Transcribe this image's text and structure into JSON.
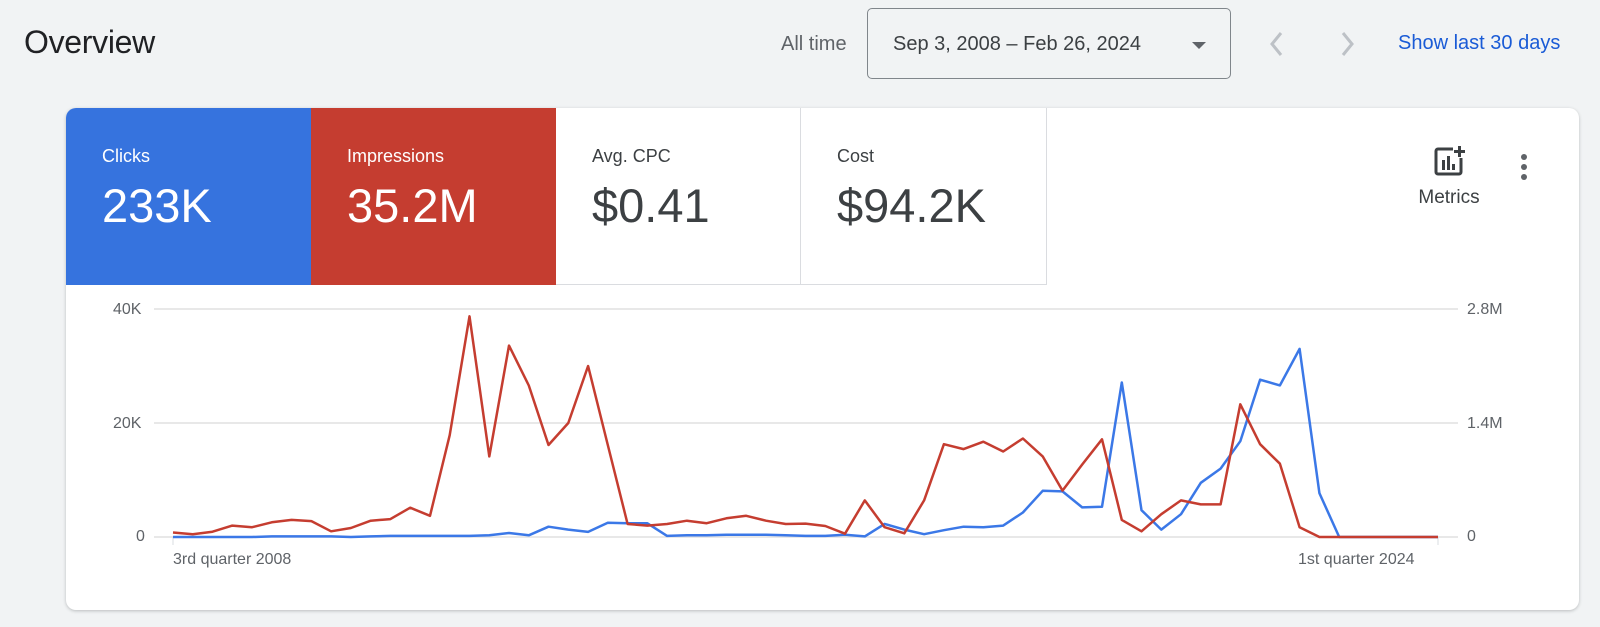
{
  "header": {
    "title": "Overview",
    "range_label": "All time",
    "date_range": "Sep 3, 2008 – Feb 26, 2024",
    "prev_icon": "chevron-left-icon",
    "next_icon": "chevron-right-icon",
    "show_last_30": "Show last 30 days"
  },
  "tiles": [
    {
      "label": "Clicks",
      "value": "233K",
      "color": "#3673de"
    },
    {
      "label": "Impressions",
      "value": "35.2M",
      "color": "#c53d30"
    },
    {
      "label": "Avg. CPC",
      "value": "$0.41"
    },
    {
      "label": "Cost",
      "value": "$94.2K"
    }
  ],
  "toolbar": {
    "metrics_label": "Metrics",
    "metrics_icon": "add-chart-icon",
    "more_icon": "more-vert-icon"
  },
  "chart_data": {
    "type": "line",
    "title": "",
    "x_start_label": "3rd quarter 2008",
    "x_end_label": "1st quarter 2024",
    "left_axis": {
      "ticks": [
        "0",
        "20K",
        "40K"
      ],
      "range": [
        0,
        40000
      ]
    },
    "right_axis": {
      "ticks": [
        "0",
        "1.4M",
        "2.8M"
      ],
      "range": [
        0,
        2800000
      ]
    },
    "grid": true,
    "series": [
      {
        "name": "Clicks",
        "axis": "left",
        "color": "#3b78e7",
        "values": [
          0,
          0,
          0,
          0,
          0,
          100,
          100,
          100,
          100,
          0,
          100,
          200,
          200,
          200,
          200,
          200,
          300,
          700,
          300,
          1800,
          1300,
          900,
          2500,
          2400,
          2400,
          200,
          300,
          300,
          400,
          400,
          400,
          300,
          200,
          200,
          400,
          100,
          2300,
          1300,
          500,
          1200,
          1800,
          1700,
          2000,
          4300,
          8100,
          8000,
          5200,
          5300,
          27100,
          4700,
          1300,
          4000,
          9500,
          12000,
          16800,
          27600,
          26600,
          33000,
          7700,
          0,
          0,
          0,
          0,
          0,
          0
        ]
      },
      {
        "name": "Impressions",
        "axis": "right",
        "color": "#c53d30",
        "values": [
          55000,
          35000,
          65000,
          140000,
          120000,
          180000,
          210000,
          195000,
          70000,
          110000,
          200000,
          220000,
          360000,
          260000,
          1250000,
          2710000,
          990000,
          2350000,
          1860000,
          1130000,
          1400000,
          2100000,
          1130000,
          160000,
          140000,
          160000,
          200000,
          170000,
          230000,
          260000,
          200000,
          160000,
          165000,
          135000,
          40000,
          450000,
          120000,
          45000,
          450000,
          1140000,
          1080000,
          1170000,
          1050000,
          1210000,
          990000,
          570000,
          890000,
          1200000,
          210000,
          70000,
          280000,
          450000,
          400000,
          400000,
          1630000,
          1140000,
          900000,
          120000,
          0,
          0,
          0,
          0,
          0,
          0,
          0
        ]
      }
    ]
  }
}
